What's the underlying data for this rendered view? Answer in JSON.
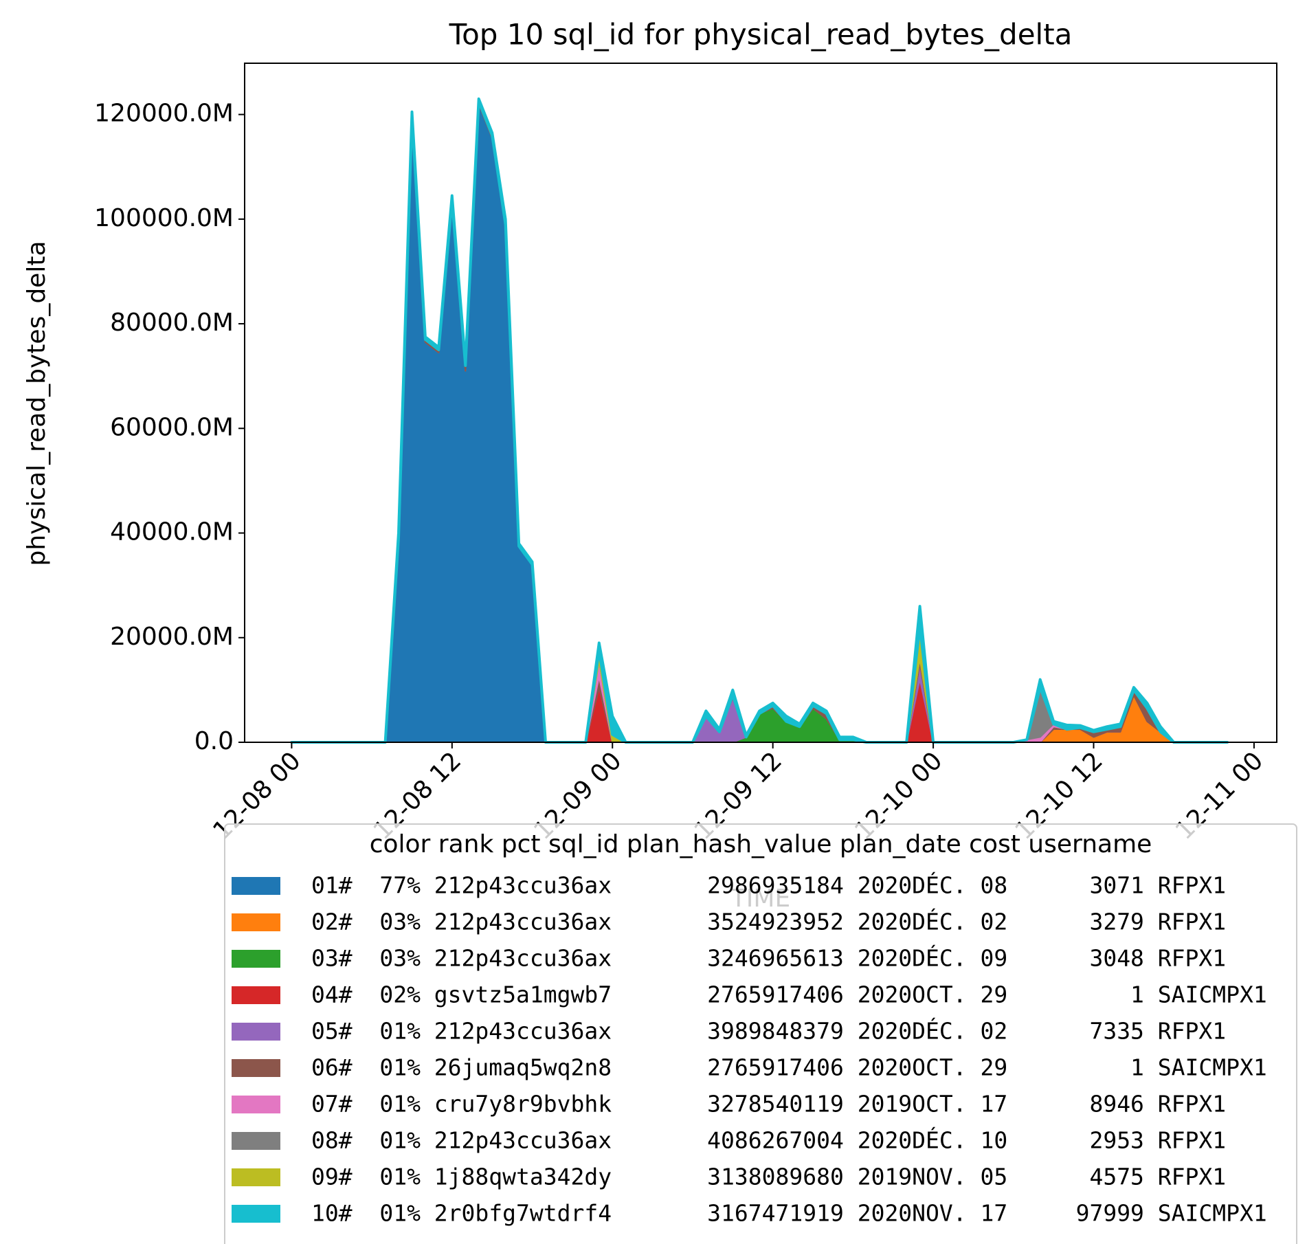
{
  "chart_data": {
    "type": "stackplot",
    "title": "Top 10 sql_id for physical_read_bytes_delta",
    "x_label": "TIME",
    "y_label": "physical_read_bytes_delta",
    "legend_title": "color rank pct sql_id plan_hash_value plan_date cost username",
    "x": [
      "12-08 00:00",
      "12-08 01:00",
      "12-08 02:00",
      "12-08 03:00",
      "12-08 04:00",
      "12-08 05:00",
      "12-08 06:00",
      "12-08 07:00",
      "12-08 08:00",
      "12-08 09:00",
      "12-08 10:00",
      "12-08 11:00",
      "12-08 12:00",
      "12-08 13:00",
      "12-08 14:00",
      "12-08 15:00",
      "12-08 16:00",
      "12-08 17:00",
      "12-08 18:00",
      "12-08 19:00",
      "12-08 20:00",
      "12-08 21:00",
      "12-08 22:00",
      "12-08 23:00",
      "12-09 00:00",
      "12-09 01:00",
      "12-09 02:00",
      "12-09 03:00",
      "12-09 04:00",
      "12-09 05:00",
      "12-09 06:00",
      "12-09 07:00",
      "12-09 08:00",
      "12-09 09:00",
      "12-09 10:00",
      "12-09 11:00",
      "12-09 12:00",
      "12-09 13:00",
      "12-09 14:00",
      "12-09 15:00",
      "12-09 16:00",
      "12-09 17:00",
      "12-09 18:00",
      "12-09 19:00",
      "12-09 20:00",
      "12-09 21:00",
      "12-09 22:00",
      "12-09 23:00",
      "12-10 00:00",
      "12-10 01:00",
      "12-10 02:00",
      "12-10 03:00",
      "12-10 04:00",
      "12-10 05:00",
      "12-10 06:00",
      "12-10 07:00",
      "12-10 08:00",
      "12-10 09:00",
      "12-10 10:00",
      "12-10 11:00",
      "12-10 12:00",
      "12-10 13:00",
      "12-10 14:00",
      "12-10 15:00",
      "12-10 16:00",
      "12-10 17:00",
      "12-10 18:00",
      "12-10 19:00",
      "12-10 20:00",
      "12-10 21:00",
      "12-10 22:00"
    ],
    "xlim": [
      "12-07 20:29",
      "12-11 01:42"
    ],
    "xticks": [
      {
        "value": "12-08 00:00",
        "label": "12-08 00"
      },
      {
        "value": "12-08 12:00",
        "label": "12-08 12"
      },
      {
        "value": "12-09 00:00",
        "label": "12-09 00"
      },
      {
        "value": "12-09 12:00",
        "label": "12-09 12"
      },
      {
        "value": "12-10 00:00",
        "label": "12-10 00"
      },
      {
        "value": "12-10 12:00",
        "label": "12-10 12"
      },
      {
        "value": "12-11 00:00",
        "label": "12-11 00"
      }
    ],
    "ylim": [
      0,
      129800
    ],
    "yticks": [
      {
        "value": 0,
        "label": "0.0"
      },
      {
        "value": 20000,
        "label": "20000.0M"
      },
      {
        "value": 40000,
        "label": "40000.0M"
      },
      {
        "value": 60000,
        "label": "60000.0M"
      },
      {
        "value": 80000,
        "label": "80000.0M"
      },
      {
        "value": 100000,
        "label": "100000.0M"
      },
      {
        "value": 120000,
        "label": "120000.0M"
      }
    ],
    "series": [
      {
        "name": "01#  77% 212p43ccu36ax       2986935184 2020DÉC. 08      3071 RFPX1",
        "color": "#1f77b4",
        "values": [
          0,
          0,
          0,
          0,
          0,
          0,
          0,
          0,
          39000,
          119500,
          76500,
          74500,
          103500,
          71000,
          122000,
          115500,
          99000,
          37500,
          34000,
          0,
          0,
          0,
          0,
          0,
          0,
          0,
          0,
          0,
          0,
          0,
          0,
          0,
          0,
          0,
          0,
          0,
          0,
          0,
          0,
          0,
          0,
          0,
          0,
          0,
          0,
          0,
          0,
          0,
          0,
          0,
          0,
          0,
          0,
          0,
          0,
          0,
          0,
          0,
          0,
          0,
          0,
          0,
          0,
          0,
          0,
          0,
          0,
          0,
          0,
          0,
          0
        ]
      },
      {
        "name": "02#  03% 212p43ccu36ax       3524923952 2020DÉC. 02      3279 RFPX1",
        "color": "#ff7f0e",
        "values": [
          0,
          0,
          0,
          0,
          0,
          0,
          0,
          0,
          0,
          0,
          0,
          0,
          0,
          0,
          0,
          0,
          0,
          0,
          0,
          0,
          0,
          0,
          0,
          0,
          0,
          0,
          0,
          0,
          0,
          0,
          0,
          0,
          0,
          0,
          0,
          0,
          0,
          0,
          0,
          0,
          0,
          0,
          0,
          0,
          0,
          0,
          0,
          0,
          0,
          0,
          0,
          0,
          0,
          0,
          0,
          0,
          0,
          2500,
          2500,
          2500,
          1000,
          2000,
          2000,
          9000,
          4000,
          2000,
          0,
          0,
          0,
          0,
          0
        ]
      },
      {
        "name": "03#  03% 212p43ccu36ax       3246965613 2020DÉC. 09      3048 RFPX1",
        "color": "#2ca02c",
        "values": [
          0,
          0,
          0,
          0,
          0,
          0,
          0,
          0,
          0,
          0,
          0,
          0,
          0,
          0,
          0,
          0,
          0,
          0,
          0,
          0,
          0,
          0,
          0,
          0,
          0,
          0,
          0,
          0,
          0,
          0,
          0,
          0,
          0,
          0,
          1000,
          5500,
          6500,
          4000,
          3000,
          6500,
          4500,
          500,
          500,
          0,
          0,
          0,
          0,
          0,
          0,
          0,
          0,
          0,
          0,
          0,
          0,
          0,
          0,
          0,
          0,
          0,
          0,
          0,
          0,
          0,
          0,
          0,
          0,
          0,
          0,
          0,
          0
        ]
      },
      {
        "name": "04#  02% gsvtz5a1mgwb7       2765917406 2020OCT. 29         1 SAICMPX1",
        "color": "#d62728",
        "values": [
          0,
          0,
          0,
          0,
          0,
          0,
          0,
          0,
          0,
          0,
          0,
          0,
          0,
          0,
          0,
          0,
          0,
          0,
          0,
          0,
          0,
          0,
          0,
          10500,
          0,
          0,
          0,
          0,
          0,
          0,
          0,
          0,
          0,
          0,
          0,
          0,
          0,
          0,
          0,
          0,
          0,
          0,
          0,
          0,
          0,
          0,
          0,
          12000,
          0,
          0,
          0,
          0,
          0,
          0,
          0,
          0,
          0,
          0,
          0,
          0,
          0,
          0,
          0,
          0,
          0,
          0,
          0,
          0,
          0,
          0,
          0
        ]
      },
      {
        "name": "05#  01% 212p43ccu36ax       3989848379 2020DÉC. 02      7335 RFPX1",
        "color": "#9467bd",
        "values": [
          0,
          0,
          0,
          0,
          0,
          0,
          0,
          0,
          0,
          0,
          0,
          0,
          0,
          0,
          0,
          0,
          0,
          0,
          0,
          0,
          0,
          0,
          0,
          0,
          0,
          0,
          0,
          0,
          0,
          0,
          0,
          5000,
          2000,
          8500,
          0,
          0,
          0,
          0,
          0,
          0,
          0,
          0,
          0,
          0,
          0,
          0,
          0,
          3000,
          0,
          0,
          0,
          0,
          0,
          0,
          0,
          0,
          0,
          0,
          0,
          0,
          0,
          0,
          0,
          0,
          0,
          0,
          0,
          0,
          0,
          0,
          0
        ]
      },
      {
        "name": "06#  01% 26jumaq5wq2n8       2765917406 2020OCT. 29         1 SAICMPX1",
        "color": "#8c564b",
        "values": [
          0,
          0,
          0,
          0,
          0,
          0,
          0,
          0,
          0,
          0,
          500,
          500,
          0,
          1000,
          500,
          500,
          0,
          0,
          0,
          0,
          0,
          0,
          0,
          2000,
          0,
          0,
          0,
          0,
          0,
          0,
          0,
          0,
          0,
          500,
          0,
          0,
          500,
          0,
          0,
          500,
          1000,
          0,
          0,
          0,
          0,
          0,
          0,
          1000,
          0,
          0,
          0,
          0,
          0,
          0,
          0,
          0,
          0,
          500,
          0,
          300,
          1000,
          500,
          1000,
          1000,
          2500,
          0,
          0,
          0,
          0,
          0,
          0
        ]
      },
      {
        "name": "07#  01% cru7y8r9bvbhk       3278540119 2019OCT. 17      8946 RFPX1",
        "color": "#e377c2",
        "values": [
          0,
          0,
          0,
          0,
          0,
          0,
          0,
          0,
          0,
          0,
          0,
          0,
          0,
          0,
          0,
          0,
          0,
          0,
          0,
          0,
          0,
          0,
          0,
          3000,
          0,
          0,
          0,
          0,
          0,
          0,
          0,
          0,
          0,
          0,
          0,
          0,
          0,
          0,
          0,
          0,
          0,
          0,
          0,
          0,
          0,
          0,
          0,
          0,
          0,
          0,
          0,
          0,
          0,
          0,
          0,
          500,
          1000,
          500,
          0,
          0,
          0,
          0,
          0,
          0,
          0,
          0,
          0,
          0,
          0,
          0,
          0
        ]
      },
      {
        "name": "08#  01% 212p43ccu36ax       4086267004 2020DÉC. 10      2953 RFPX1",
        "color": "#7f7f7f",
        "values": [
          0,
          0,
          0,
          0,
          0,
          0,
          0,
          0,
          0,
          0,
          0,
          0,
          0,
          0,
          0,
          0,
          0,
          0,
          0,
          0,
          0,
          0,
          0,
          0,
          0,
          0,
          0,
          0,
          0,
          0,
          0,
          0,
          0,
          0,
          0,
          0,
          0,
          0,
          0,
          0,
          0,
          0,
          0,
          0,
          0,
          0,
          0,
          0,
          0,
          0,
          0,
          0,
          0,
          0,
          0,
          0,
          9500,
          0,
          0,
          0,
          0,
          0,
          0,
          0,
          0,
          0,
          0,
          0,
          0,
          0,
          0
        ]
      },
      {
        "name": "09#  01% 1j88qwta342dy       3138089680 2019NOV. 05      4575 RFPX1",
        "color": "#bcbd22",
        "values": [
          0,
          0,
          0,
          0,
          0,
          0,
          0,
          0,
          0,
          0,
          0,
          0,
          0,
          0,
          0,
          0,
          0,
          0,
          0,
          0,
          0,
          0,
          0,
          2000,
          1500,
          0,
          0,
          0,
          0,
          0,
          0,
          0,
          0,
          0,
          0,
          0,
          0,
          0,
          0,
          0,
          0,
          0,
          0,
          0,
          0,
          0,
          0,
          6000,
          0,
          0,
          0,
          0,
          0,
          0,
          0,
          0,
          0,
          0,
          0,
          0,
          0,
          0,
          0,
          0,
          0,
          0,
          0,
          0,
          0,
          0,
          0
        ]
      },
      {
        "name": "10#  01% 2r0bfg7wtdrf4       3167471919 2020NOV. 17     97999 SAICMPX1",
        "color": "#17becf",
        "values": [
          0,
          0,
          0,
          0,
          0,
          0,
          0,
          0,
          1000,
          1000,
          500,
          500,
          1000,
          500,
          500,
          500,
          1000,
          500,
          500,
          0,
          0,
          0,
          0,
          1500,
          3500,
          0,
          0,
          0,
          0,
          0,
          0,
          1000,
          500,
          1000,
          300,
          500,
          500,
          1000,
          500,
          500,
          500,
          500,
          500,
          0,
          0,
          0,
          0,
          4000,
          0,
          0,
          0,
          0,
          0,
          0,
          0,
          0,
          1500,
          500,
          800,
          400,
          300,
          500,
          500,
          500,
          1000,
          1000,
          0,
          0,
          0,
          0,
          0
        ]
      }
    ]
  }
}
